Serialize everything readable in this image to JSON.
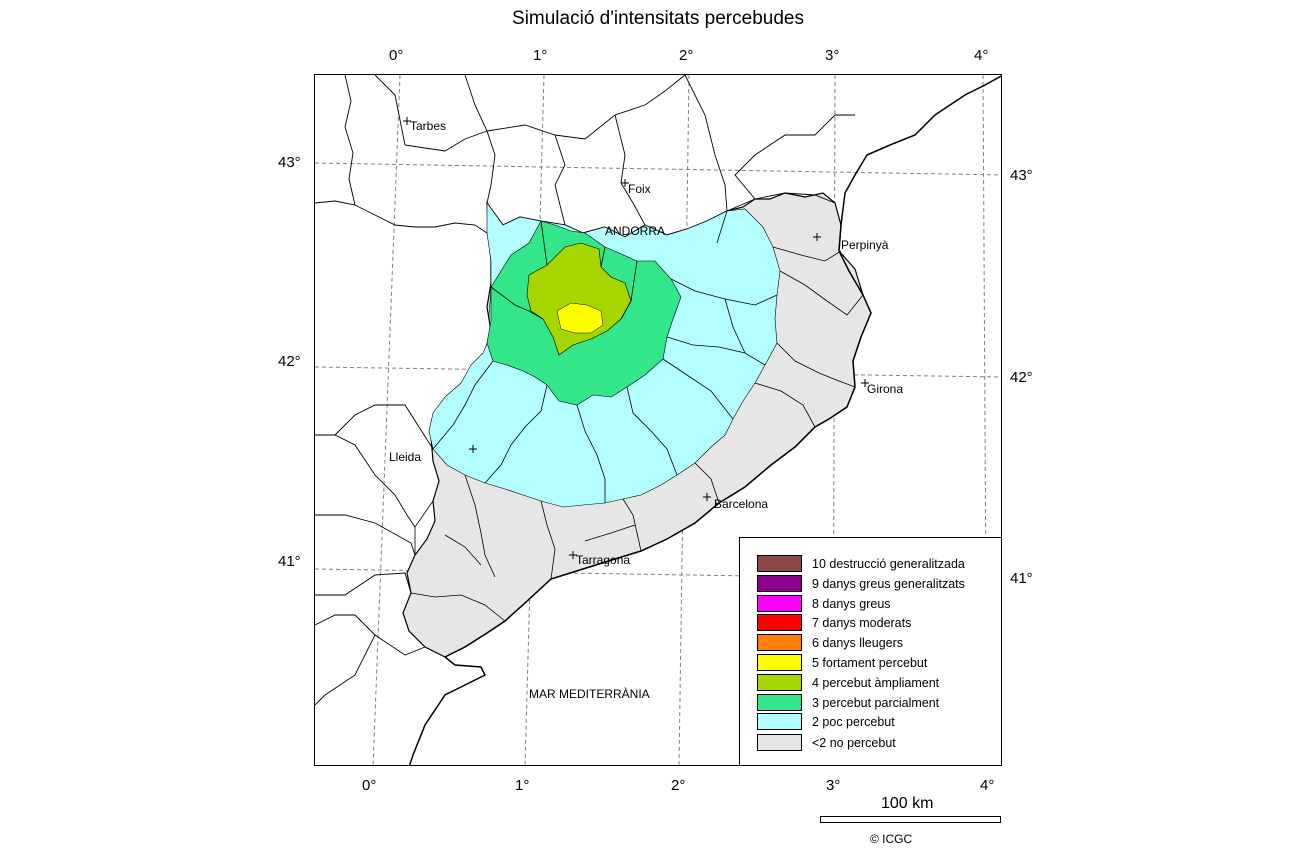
{
  "title": "Simulació d'intensitats percebudes",
  "top_axis_ticks": [
    "0°",
    "1°",
    "2°",
    "3°",
    "4°"
  ],
  "bottom_axis_ticks": [
    "0°",
    "1°",
    "2°",
    "3°",
    "4°"
  ],
  "left_axis_ticks": [
    "43°",
    "42°",
    "41°"
  ],
  "right_axis_ticks": [
    "43°",
    "42°",
    "41°"
  ],
  "places": {
    "tarbes": "Tarbes",
    "foix": "Foix",
    "andorra": "ANDORRA",
    "perpinya": "Perpinyà",
    "girona": "Girona",
    "lleida": "Lleida",
    "barcelona": "Barcelona",
    "tarragona": "Tarragona",
    "sea": "MAR MEDITERRÀNIA"
  },
  "legend": [
    {
      "label": "10 destrucció generalitzada",
      "color": "#8B4A47"
    },
    {
      "label": "9 danys greus generalitzats",
      "color": "#8B008B"
    },
    {
      "label": "8 danys greus",
      "color": "#FF00FF"
    },
    {
      "label": "7 danys moderats",
      "color": "#FF0000"
    },
    {
      "label": "6 danys lleugers",
      "color": "#FF8000"
    },
    {
      "label": "5 fortament percebut",
      "color": "#FFFF00"
    },
    {
      "label": "4 percebut àmpliament",
      "color": "#A6D600"
    },
    {
      "label": "3 percebut parcialment",
      "color": "#33E68A"
    },
    {
      "label": "2 poc percebut",
      "color": "#B3FFFF"
    },
    {
      "label": "<2 no percebut",
      "color": "#E6E6E6"
    }
  ],
  "scale_label": "100 km",
  "credit": "© ICGC"
}
